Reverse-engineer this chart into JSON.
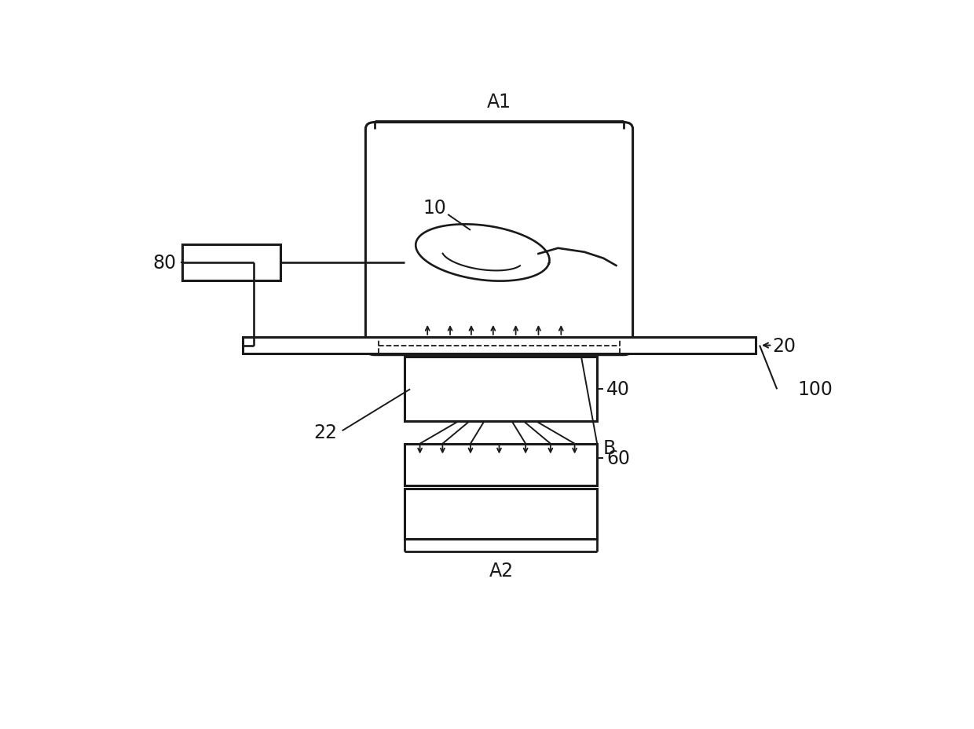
{
  "bg_color": "#ffffff",
  "line_color": "#1a1a1a",
  "fig_width": 12.4,
  "fig_height": 9.29
}
